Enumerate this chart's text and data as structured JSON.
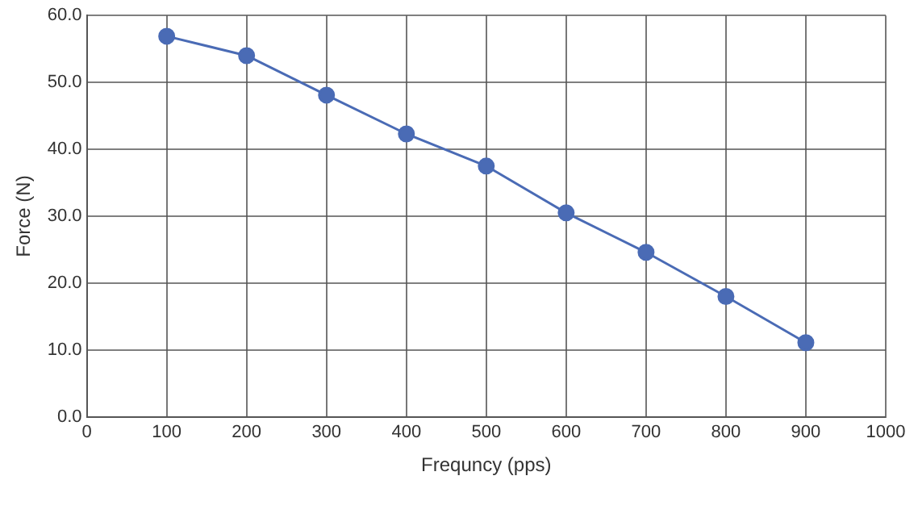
{
  "chart_data": {
    "type": "line",
    "xlabel": "Frequncy (pps)",
    "ylabel": "Force (N)",
    "x": [
      100,
      200,
      300,
      400,
      500,
      600,
      700,
      800,
      900
    ],
    "series": [
      {
        "color": "#4a6bb5",
        "values": [
          56.9,
          54.0,
          48.1,
          42.3,
          37.5,
          30.5,
          24.6,
          18.0,
          11.1
        ]
      }
    ],
    "xlim": [
      0,
      1000
    ],
    "xticks": [
      0,
      100,
      200,
      300,
      400,
      500,
      600,
      700,
      800,
      900,
      1000
    ],
    "ylim": [
      0,
      60
    ],
    "yticks": [
      {
        "value": 0,
        "label": "0.0"
      },
      {
        "value": 10,
        "label": "10.0"
      },
      {
        "value": 20,
        "label": "20.0"
      },
      {
        "value": 30,
        "label": "30.0"
      },
      {
        "value": 40,
        "label": "40.0"
      },
      {
        "value": 50,
        "label": "50.0"
      },
      {
        "value": 60,
        "label": "60.0"
      }
    ],
    "grid": true,
    "marker": "circle",
    "line_style": "solid",
    "legend": false
  }
}
